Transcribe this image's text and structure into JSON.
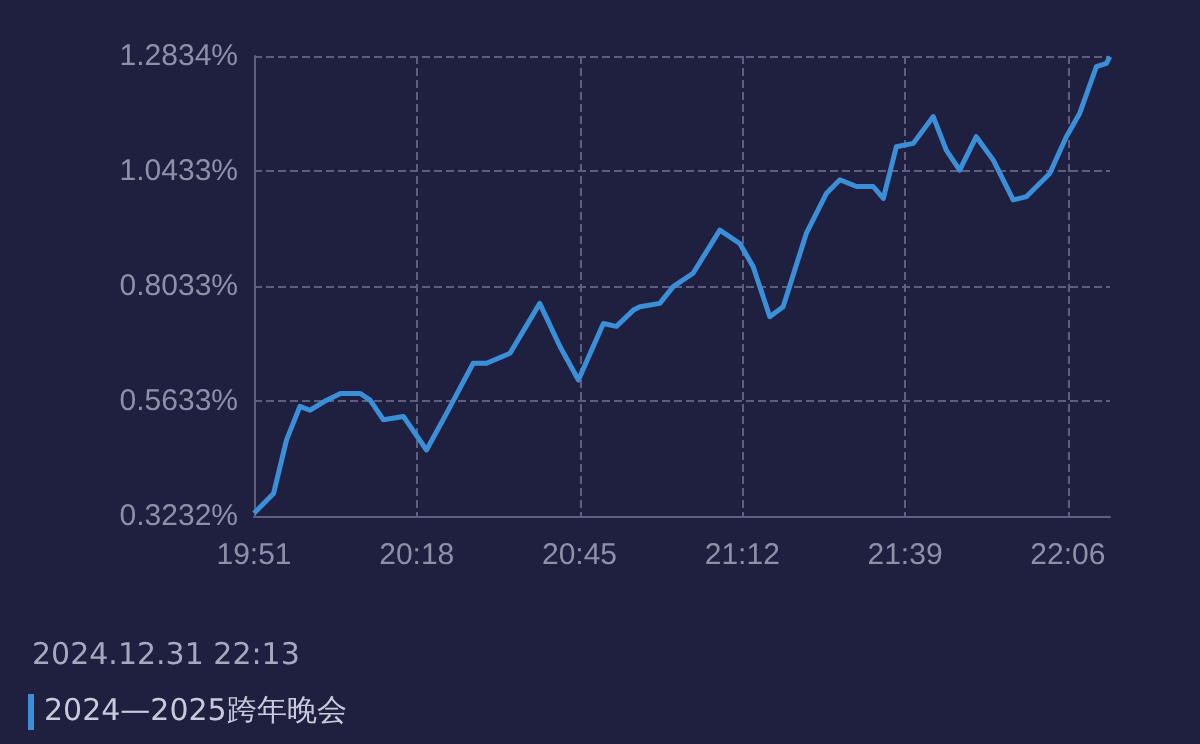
{
  "chart_data": {
    "type": "line",
    "x": [
      19.85,
      19.904,
      19.94,
      19.977,
      20.005,
      20.051,
      20.089,
      20.144,
      20.171,
      20.208,
      20.263,
      20.327,
      20.382,
      20.456,
      20.493,
      20.558,
      20.64,
      20.696,
      20.747,
      20.816,
      20.852,
      20.899,
      20.917,
      20.972,
      21.009,
      21.064,
      21.138,
      21.193,
      21.23,
      21.276,
      21.313,
      21.377,
      21.433,
      21.47,
      21.516,
      21.562,
      21.59,
      21.626,
      21.673,
      21.728,
      21.764,
      21.801,
      21.847,
      21.894,
      21.949,
      21.986,
      22.05,
      22.096,
      22.133,
      22.179,
      22.207,
      22.216
    ],
    "series": [
      {
        "color": "#3a8fd8",
        "values": [
          0.329,
          0.37,
          0.482,
          0.552,
          0.544,
          0.565,
          0.579,
          0.579,
          0.565,
          0.524,
          0.531,
          0.461,
          0.537,
          0.642,
          0.642,
          0.663,
          0.767,
          0.677,
          0.607,
          0.725,
          0.719,
          0.753,
          0.76,
          0.767,
          0.802,
          0.83,
          0.92,
          0.892,
          0.844,
          0.739,
          0.76,
          0.913,
          0.997,
          1.025,
          1.011,
          1.011,
          0.986,
          1.094,
          1.101,
          1.157,
          1.087,
          1.045,
          1.115,
          1.066,
          0.983,
          0.99,
          1.038,
          1.115,
          1.164,
          1.261,
          1.268,
          1.282
        ]
      }
    ],
    "xlim": [
      19.85,
      22.2167
    ],
    "xticks": [
      {
        "value": 19.85,
        "label": "19:51"
      },
      {
        "value": 20.3,
        "label": "20:18"
      },
      {
        "value": 20.75,
        "label": "20:45"
      },
      {
        "value": 21.2,
        "label": "21:12"
      },
      {
        "value": 21.65,
        "label": "21:39"
      },
      {
        "value": 22.1,
        "label": "22:06"
      }
    ],
    "ylim": [
      0.3232,
      1.2834
    ],
    "yticks": [
      {
        "value": 0.3232,
        "label": "0.3232%"
      },
      {
        "value": 0.5633,
        "label": "0.5633%"
      },
      {
        "value": 0.8033,
        "label": "0.8033%"
      },
      {
        "value": 1.0433,
        "label": "1.0433%"
      },
      {
        "value": 1.2834,
        "label": "1.2834%"
      }
    ],
    "grid": true,
    "marker": "none",
    "line_style": "solid",
    "annotations": [
      "2024.12.31 22:13",
      "2024—2025跨年晚会"
    ]
  }
}
